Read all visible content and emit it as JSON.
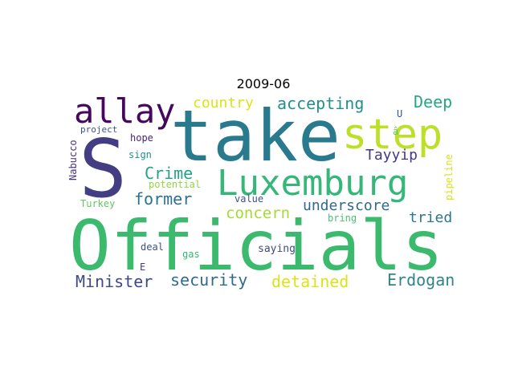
{
  "chart_data": {
    "type": "wordcloud",
    "title": "2009-06",
    "words": [
      {
        "text": "Officials",
        "color": "#3bb96d"
      },
      {
        "text": "take",
        "color": "#2a7a8e"
      },
      {
        "text": "S",
        "color": "#433d84"
      },
      {
        "text": "step",
        "color": "#bcdf27"
      },
      {
        "text": "Luxemburg",
        "color": "#35b779"
      },
      {
        "text": "allay",
        "color": "#46085c"
      },
      {
        "text": "security",
        "color": "#306a8e"
      },
      {
        "text": "Minister",
        "color": "#3e4989"
      },
      {
        "text": "detained",
        "color": "#dde318"
      },
      {
        "text": "Erdogan",
        "color": "#31848d"
      },
      {
        "text": "accepting",
        "color": "#21908d"
      },
      {
        "text": "Deep",
        "color": "#26a784"
      },
      {
        "text": "country",
        "color": "#dde318"
      },
      {
        "text": "Tayyip",
        "color": "#443a83"
      },
      {
        "text": "Crime",
        "color": "#20a386"
      },
      {
        "text": "former",
        "color": "#2c718e"
      },
      {
        "text": "concern",
        "color": "#a5db36"
      },
      {
        "text": "underscore",
        "color": "#31688e"
      },
      {
        "text": "tried",
        "color": "#2a788e"
      },
      {
        "text": "Nabucco",
        "color": "#46327e"
      },
      {
        "text": "project",
        "color": "#3b528b"
      },
      {
        "text": "hope",
        "color": "#482475"
      },
      {
        "text": "sign",
        "color": "#21918c"
      },
      {
        "text": "potential",
        "color": "#90d743"
      },
      {
        "text": "Turkey",
        "color": "#5ec962"
      },
      {
        "text": "value",
        "color": "#3b528b"
      },
      {
        "text": "bring",
        "color": "#4ac16d"
      },
      {
        "text": "pipeline",
        "color": "#d8e219"
      },
      {
        "text": "U",
        "color": "#3b528b"
      },
      {
        "text": "â",
        "color": "#5ec962"
      },
      {
        "text": "deal",
        "color": "#3b528b"
      },
      {
        "text": "gas",
        "color": "#35b779"
      },
      {
        "text": "saying",
        "color": "#3e4a89"
      },
      {
        "text": "E",
        "color": "#443983"
      }
    ]
  }
}
